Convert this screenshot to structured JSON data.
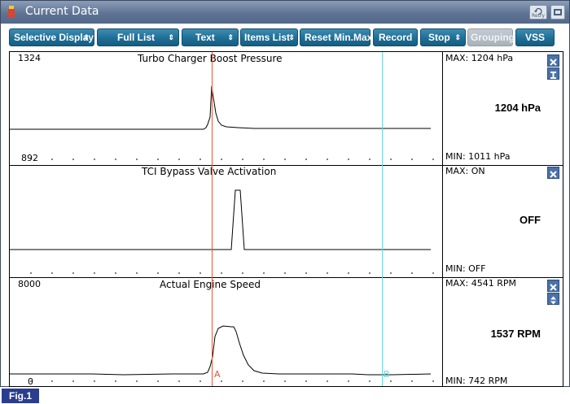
{
  "window": {
    "title": "Current Data",
    "retry_label": "Retry",
    "accent": "#5f7494"
  },
  "toolbar": {
    "buttons": [
      {
        "label": "Selective Display",
        "dropdown": true
      },
      {
        "label": "Full List",
        "dropdown": true
      },
      {
        "label": "Text",
        "dropdown": true
      },
      {
        "label": "Items List",
        "dropdown": true
      },
      {
        "label": "Reset Min.Max",
        "dropdown": false
      },
      {
        "label": "Record",
        "dropdown": false
      },
      {
        "label": "Stop",
        "dropdown": true
      },
      {
        "label": "Grouping",
        "dropdown": false,
        "disabled": true
      },
      {
        "label": "VSS",
        "dropdown": false
      }
    ],
    "button_color": "#1f6e96",
    "dropdown_arrow": "⇕"
  },
  "cursors": {
    "a_label": "A",
    "a_color": "#e0583a",
    "b_label": "B",
    "b_color": "#69d6db"
  },
  "panels": [
    {
      "title": "Turbo Charger Boost Pressure",
      "scale_max": "1324",
      "scale_min": "892",
      "max_label": "MAX:  1204 hPa",
      "min_label": "MIN:  1011 hPa",
      "current": "1204 hPa",
      "button2_icon": "scale-icon"
    },
    {
      "title": "TCI Bypass Valve Activation",
      "scale_max": "",
      "scale_min": "",
      "max_label": "MAX: ON",
      "min_label": "MIN: OFF",
      "current": "OFF"
    },
    {
      "title": "Actual Engine Speed",
      "scale_max": "8000",
      "scale_min": "0",
      "max_label": "MAX:  4541 RPM",
      "min_label": "MIN:   742 RPM",
      "current": "1537 RPM",
      "button2_icon": "expand-icon"
    }
  ],
  "figure_label": "Fig.1"
}
